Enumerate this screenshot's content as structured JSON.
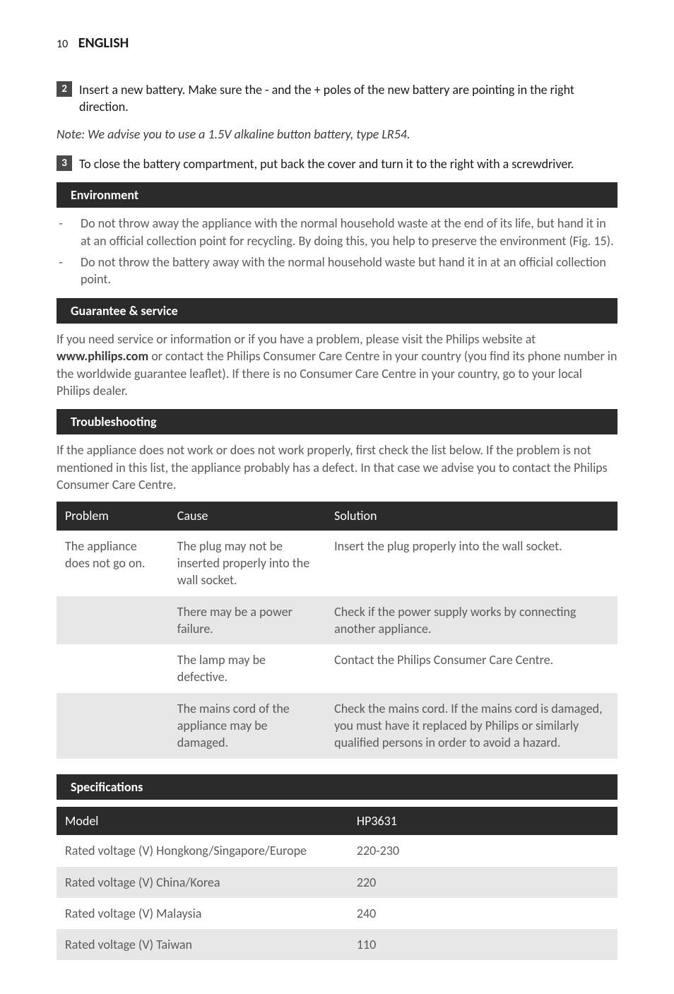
{
  "page": {
    "number": "10",
    "lang": "ENGLISH"
  },
  "steps": [
    {
      "num": "2",
      "text": "Insert a new battery. Make sure the - and the + poles of the new battery are pointing in the right direction."
    },
    {
      "num": "3",
      "text": "To close the battery compartment, put back the cover and turn it to the right with a screwdriver."
    }
  ],
  "note": "Note: We advise you to use a 1.5V alkaline button battery, type LR54.",
  "sections": {
    "environment": {
      "title": "Environment",
      "bullets": [
        "Do not throw away the appliance with the normal household waste at the end of its life, but hand it in at an official collection point for recycling. By doing this, you help to preserve the environment (Fig. 15).",
        "Do not throw the battery away with the normal household waste but hand it in at an official collection point."
      ]
    },
    "guarantee": {
      "title": "Guarantee & service",
      "text_pre": "If you need service or information or if you have a problem, please visit the Philips website at ",
      "link": "www.philips.com",
      "text_post": " or contact the Philips Consumer Care Centre in your country (you find its phone number in the worldwide guarantee leaflet). If there is no Consumer Care Centre in your country, go to your local Philips dealer."
    },
    "troubleshooting": {
      "title": "Troubleshooting",
      "intro": "If the appliance does not work or does not work properly, first check the list below. If the problem is not mentioned in this list, the appliance probably has a defect. In that case we advise you to contact the Philips Consumer Care Centre.",
      "headers": {
        "problem": "Problem",
        "cause": "Cause",
        "solution": "Solution"
      },
      "rows": [
        {
          "problem": "The appliance does not go on.",
          "cause": "The plug may not be inserted properly into the wall socket.",
          "solution": "Insert the plug properly into the wall socket.",
          "stripe": false
        },
        {
          "problem": "",
          "cause": "There may be a power failure.",
          "solution": "Check if the power supply works by connecting another appliance.",
          "stripe": true
        },
        {
          "problem": "",
          "cause": "The lamp may be defective.",
          "solution": "Contact the Philips Consumer Care Centre.",
          "stripe": false
        },
        {
          "problem": "",
          "cause": "The mains cord of the appliance may be damaged.",
          "solution": "Check the mains cord. If the mains cord is damaged, you must have it replaced by Philips or similarly qualified persons in order to avoid a hazard.",
          "stripe": true
        }
      ]
    },
    "specifications": {
      "title": "Specifications",
      "headers": {
        "label": "Model",
        "value": "HP3631"
      },
      "rows": [
        {
          "label": "Rated voltage (V) Hongkong/Singapore/Europe",
          "value": "220-230",
          "stripe": false
        },
        {
          "label": "Rated voltage (V) China/Korea",
          "value": "220",
          "stripe": true
        },
        {
          "label": "Rated voltage (V) Malaysia",
          "value": "240",
          "stripe": false
        },
        {
          "label": "Rated voltage (V) Taiwan",
          "value": "110",
          "stripe": true
        }
      ]
    }
  },
  "colors": {
    "bar_bg": "#2b2b2b",
    "bar_fg": "#ffffff",
    "body_text": "#5a5a5a",
    "strong_text": "#1a1a1a",
    "stripe_bg": "#e7e7e7",
    "page_bg": "#ffffff"
  },
  "typography": {
    "body_fontsize_pt": 13,
    "header_fontsize_pt": 15,
    "font_family": "Gill Sans / humanist sans-serif"
  }
}
